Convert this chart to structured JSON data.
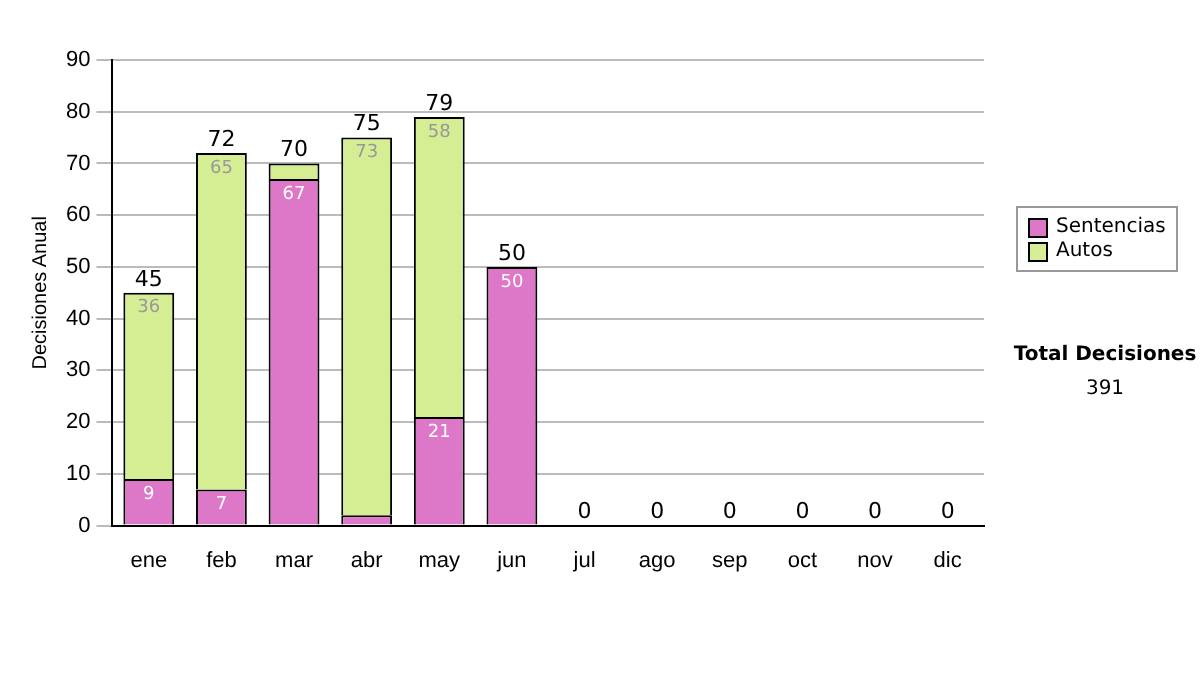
{
  "chart_data": {
    "type": "bar",
    "stacked": true,
    "ylabel": "Decisiones Anual",
    "categories": [
      "ene",
      "feb",
      "mar",
      "abr",
      "may",
      "jun",
      "jul",
      "ago",
      "sep",
      "oct",
      "nov",
      "dic"
    ],
    "series": [
      {
        "name": "Sentencias",
        "color": "#dd77c8",
        "values": [
          9,
          7,
          67,
          2,
          21,
          50,
          0,
          0,
          0,
          0,
          0,
          0
        ],
        "value_labels": [
          "9",
          "7",
          "67",
          null,
          "21",
          "50",
          null,
          null,
          null,
          null,
          null,
          null
        ]
      },
      {
        "name": "Autos",
        "color": "#d5ee94",
        "values": [
          36,
          65,
          3,
          73,
          58,
          0,
          0,
          0,
          0,
          0,
          0,
          0
        ],
        "value_labels": [
          "36",
          "65",
          null,
          "73",
          "58",
          null,
          null,
          null,
          null,
          null,
          null,
          null
        ]
      }
    ],
    "totals": [
      "45",
      "72",
      "70",
      "75",
      "79",
      "50",
      "0",
      "0",
      "0",
      "0",
      "0",
      "0"
    ],
    "ylim": [
      0,
      90
    ],
    "yticks": [
      0,
      10,
      20,
      30,
      40,
      50,
      60,
      70,
      80,
      90
    ],
    "grid": "y",
    "legend": "right",
    "annotations": [
      "Total Decisiones",
      "391"
    ]
  }
}
